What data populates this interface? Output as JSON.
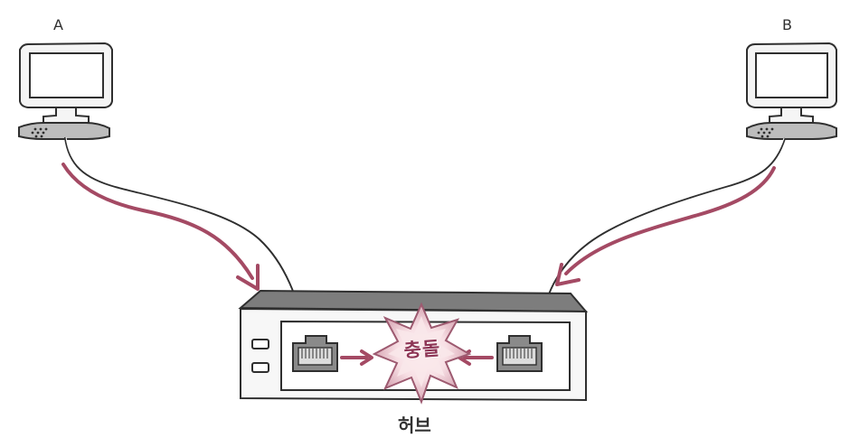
{
  "labels": {
    "computer_a": "A",
    "computer_b": "B",
    "collision": "충돌",
    "hub": "허브"
  },
  "colors": {
    "arrow": "#a44a64",
    "outline": "#2f2f2f",
    "monitor_bezel": "#f4f4f4",
    "keyboard": "#bdbdbd",
    "hub_top": "#7d7d7d",
    "hub_body": "#f7f7f7",
    "burst_fill": "#f6d8dd",
    "burst_center": "#f9e8ea"
  },
  "icons": {
    "computer": "computer-icon",
    "port": "ethernet-port-icon",
    "collision": "collision-burst-icon"
  }
}
